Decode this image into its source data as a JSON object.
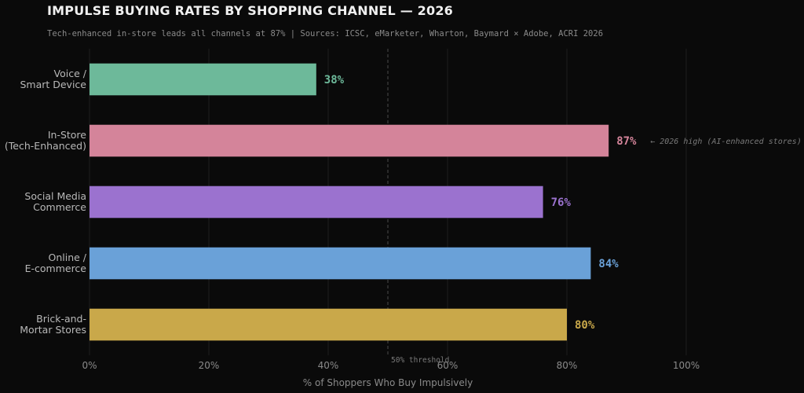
{
  "chart_data": {
    "type": "bar",
    "orientation": "horizontal",
    "title": "IMPULSE BUYING RATES BY SHOPPING CHANNEL — 2026",
    "subtitle": "Tech-enhanced in-store leads all channels at 87%  |  Sources: ICSC, eMarketer, Wharton, Baymard × Adobe, ACRI 2026",
    "categories": [
      [
        "Voice /",
        "Smart Device"
      ],
      [
        "In-Store",
        "(Tech-Enhanced)"
      ],
      [
        "Social Media",
        "Commerce"
      ],
      [
        "Online /",
        "E-commerce"
      ],
      [
        "Brick-and-",
        "Mortar Stores"
      ]
    ],
    "values": [
      38,
      87,
      76,
      84,
      80
    ],
    "value_labels": [
      "38%",
      "87%",
      "76%",
      "84%",
      "80%"
    ],
    "colors": [
      "#6db99a",
      "#d4849a",
      "#9b72cf",
      "#6aa1d8",
      "#c9a84a"
    ],
    "xlabel": "% of Shoppers Who Buy Impulsively",
    "ylabel": "",
    "xlim": [
      0,
      100
    ],
    "x_ticks": [
      0,
      20,
      40,
      60,
      80,
      100
    ],
    "x_tick_labels": [
      "0%",
      "20%",
      "40%",
      "60%",
      "80%",
      "100%"
    ],
    "grid": true,
    "threshold": {
      "value": 50,
      "label": "50% threshold"
    },
    "annotation": {
      "category_index": 1,
      "text": "← 2026 high (AI-enhanced stores)"
    }
  }
}
